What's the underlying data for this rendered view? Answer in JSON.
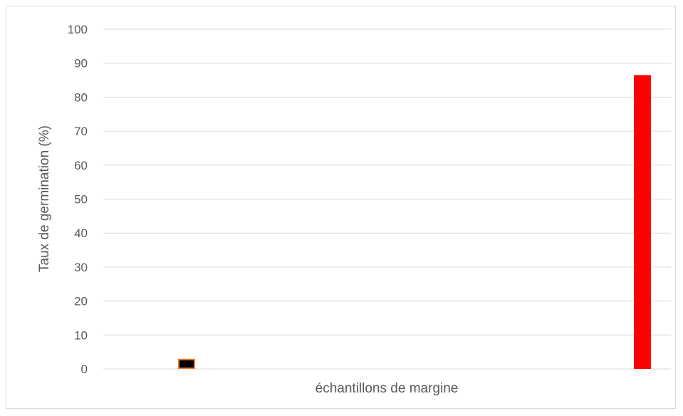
{
  "chart_data": {
    "type": "bar",
    "title": "",
    "xlabel": "échantillons de margine",
    "ylabel": "Taux de germination (%)",
    "ylim": [
      0,
      100
    ],
    "yticks": [
      "0",
      "10",
      "20",
      "30",
      "40",
      "50",
      "60",
      "70",
      "80",
      "90",
      "100"
    ],
    "grid": true,
    "categories": [
      "",
      ""
    ],
    "values": [
      3,
      86.5
    ],
    "colors": [
      {
        "fill": "#000000",
        "stroke": "#ed7d31"
      },
      {
        "fill": "#ff0000",
        "stroke": "#ff0000"
      }
    ]
  }
}
